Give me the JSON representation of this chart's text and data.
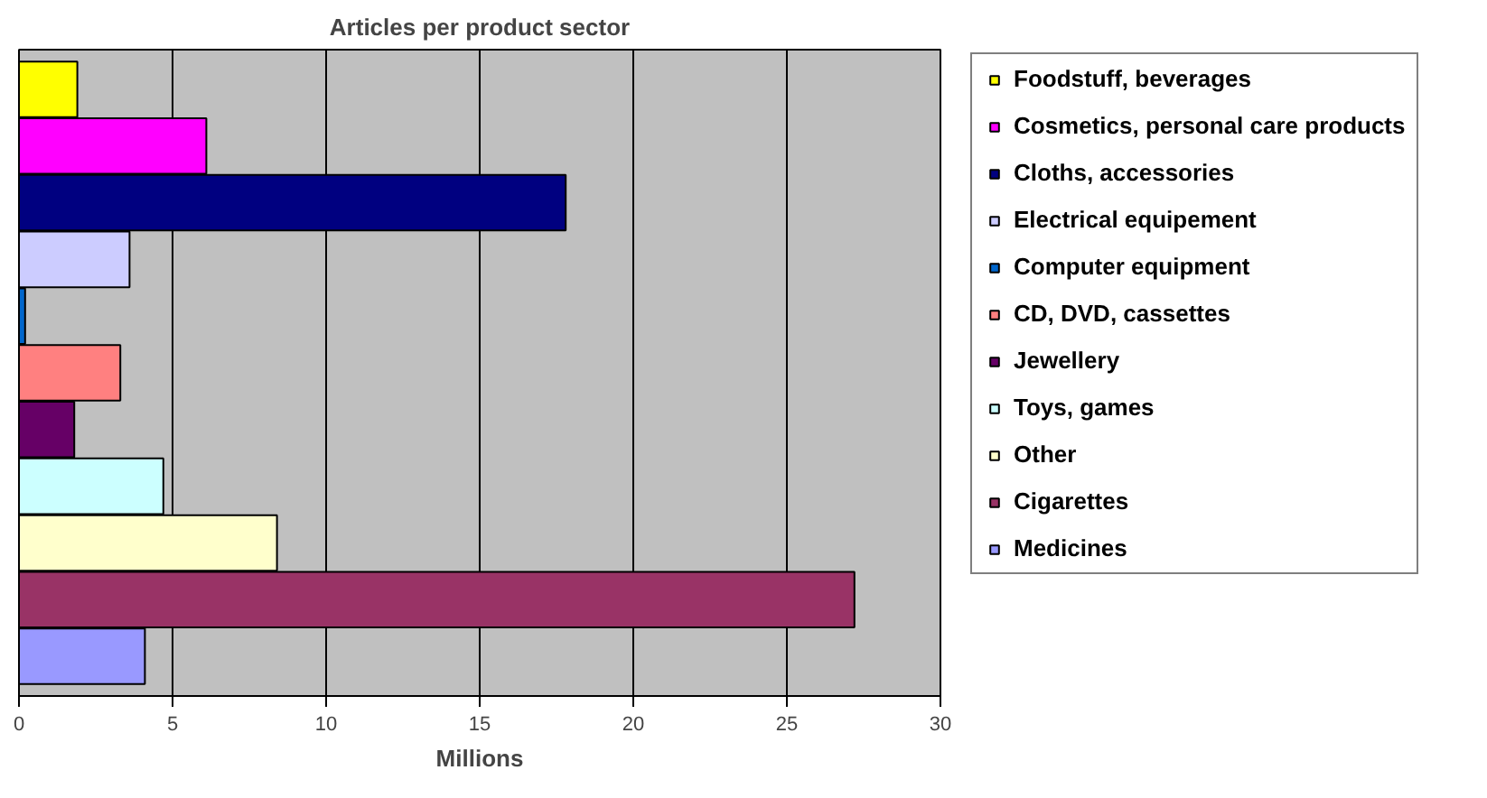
{
  "chart_data": {
    "type": "bar",
    "orientation": "horizontal",
    "title": "Articles per product sector",
    "xlabel": "Millions",
    "categories": [
      null,
      null,
      null,
      null,
      null,
      null,
      null,
      null,
      null,
      null,
      null
    ],
    "series": [
      {
        "name": "Foodstuff, beverages",
        "color": "#ffff00",
        "values": [
          1.9,
          null,
          null,
          null,
          null,
          null,
          null,
          null,
          null,
          null,
          null
        ]
      },
      {
        "name": "Cosmetics, personal care products",
        "color": "#ff00ff",
        "values": [
          null,
          6.1,
          null,
          null,
          null,
          null,
          null,
          null,
          null,
          null,
          null
        ]
      },
      {
        "name": "Cloths, accessories",
        "color": "#000080",
        "values": [
          null,
          null,
          17.8,
          null,
          null,
          null,
          null,
          null,
          null,
          null,
          null
        ]
      },
      {
        "name": "Electrical equipement",
        "color": "#ccccff",
        "values": [
          null,
          null,
          null,
          3.6,
          null,
          null,
          null,
          null,
          null,
          null,
          null
        ]
      },
      {
        "name": "Computer equipment",
        "color": "#0066cc",
        "values": [
          null,
          null,
          null,
          null,
          0.2,
          null,
          null,
          null,
          null,
          null,
          null
        ]
      },
      {
        "name": "CD, DVD, cassettes",
        "color": "#ff8080",
        "values": [
          null,
          null,
          null,
          null,
          null,
          3.3,
          null,
          null,
          null,
          null,
          null
        ]
      },
      {
        "name": "Jewellery",
        "color": "#660066",
        "values": [
          null,
          null,
          null,
          null,
          null,
          null,
          1.8,
          null,
          null,
          null,
          null
        ]
      },
      {
        "name": "Toys, games",
        "color": "#ccffff",
        "values": [
          null,
          null,
          null,
          null,
          null,
          null,
          null,
          4.7,
          null,
          null,
          null
        ]
      },
      {
        "name": "Other",
        "color": "#ffffcc",
        "values": [
          null,
          null,
          null,
          null,
          null,
          null,
          null,
          null,
          8.4,
          null,
          null
        ]
      },
      {
        "name": "Cigarettes",
        "color": "#993366",
        "values": [
          null,
          null,
          null,
          null,
          null,
          null,
          null,
          null,
          null,
          27.2,
          null
        ]
      },
      {
        "name": "Medicines",
        "color": "#9999ff",
        "values": [
          null,
          null,
          null,
          null,
          null,
          null,
          null,
          null,
          null,
          null,
          4.1
        ]
      }
    ],
    "xlim": [
      0,
      30
    ],
    "xticks": [
      0,
      5,
      10,
      15,
      20,
      25,
      30
    ],
    "grid": "x",
    "legend": "right",
    "tick_labels": "x"
  }
}
